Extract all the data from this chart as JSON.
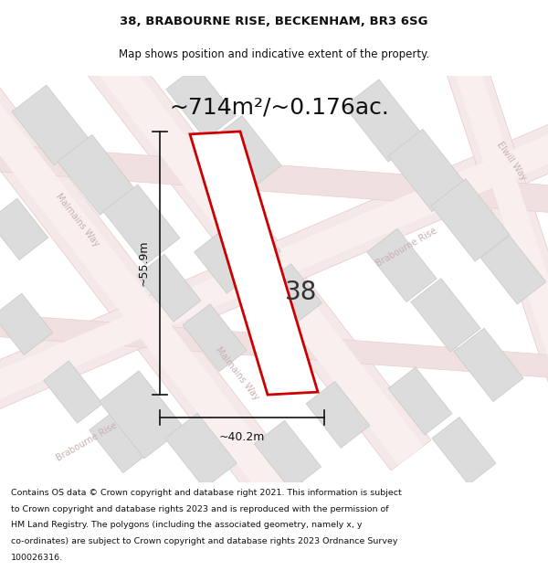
{
  "title_line1": "38, BRABOURNE RISE, BECKENHAM, BR3 6SG",
  "title_line2": "Map shows position and indicative extent of the property.",
  "area_label": "~714m²/~0.176ac.",
  "number_label": "38",
  "dim_width": "~40.2m",
  "dim_height": "~55.9m",
  "copy_lines": [
    "Contains OS data © Crown copyright and database right 2021. This information is subject",
    "to Crown copyright and database rights 2023 and is reproduced with the permission of",
    "HM Land Registry. The polygons (including the associated geometry, namely x, y",
    "co-ordinates) are subject to Crown copyright and database rights 2023 Ordnance Survey",
    "100026316."
  ],
  "map_bg": "#f2f0ef",
  "road_fill": "#f5e8e8",
  "road_edge": "#e8c8c8",
  "building_fill": "#dcdcdc",
  "building_edge": "#cccccc",
  "property_color": "#cc0000",
  "dim_color": "#111111",
  "street_label_color": "#c8b0b0",
  "title_color": "#111111",
  "copy_color": "#111111",
  "title_fontsize": 9.5,
  "subtitle_fontsize": 8.5,
  "area_fontsize": 18,
  "number_fontsize": 20,
  "dim_fontsize": 9,
  "street_fontsize": 7,
  "copy_fontsize": 6.8
}
